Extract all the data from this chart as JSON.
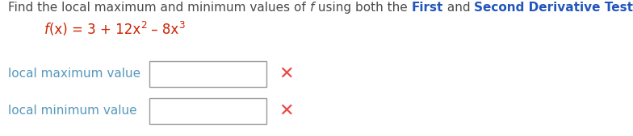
{
  "background_color": "#ffffff",
  "title_parts": [
    {
      "text": "Find the local maximum and minimum values of ",
      "color": "#4a4a4a",
      "bold": false,
      "italic": false
    },
    {
      "text": "f",
      "color": "#4a4a4a",
      "bold": false,
      "italic": true
    },
    {
      "text": " using both the ",
      "color": "#4a4a4a",
      "bold": false,
      "italic": false
    },
    {
      "text": "First",
      "color": "#2255bb",
      "bold": true,
      "italic": false
    },
    {
      "text": " and ",
      "color": "#4a4a4a",
      "bold": false,
      "italic": false
    },
    {
      "text": "Second Derivative Tests.",
      "color": "#2255bb",
      "bold": true,
      "italic": false
    }
  ],
  "func_parts": [
    {
      "text": "f",
      "color": "#cc2200",
      "bold": false,
      "italic": true,
      "super": false
    },
    {
      "text": "(x) = 3 + 12x",
      "color": "#cc2200",
      "bold": false,
      "italic": false,
      "super": false
    },
    {
      "text": "2",
      "color": "#cc2200",
      "bold": false,
      "italic": false,
      "super": true
    },
    {
      "text": " – 8x",
      "color": "#cc2200",
      "bold": false,
      "italic": false,
      "super": false
    },
    {
      "text": "3",
      "color": "#cc2200",
      "bold": false,
      "italic": false,
      "super": true
    }
  ],
  "label_color": "#5599bb",
  "box_color": "#999999",
  "cross_color": "#ee4444",
  "title_fontsize": 11,
  "func_fontsize": 12,
  "label_fontsize": 11,
  "cross_fontsize": 16,
  "figsize": [
    7.84,
    1.69
  ],
  "dpi": 100
}
